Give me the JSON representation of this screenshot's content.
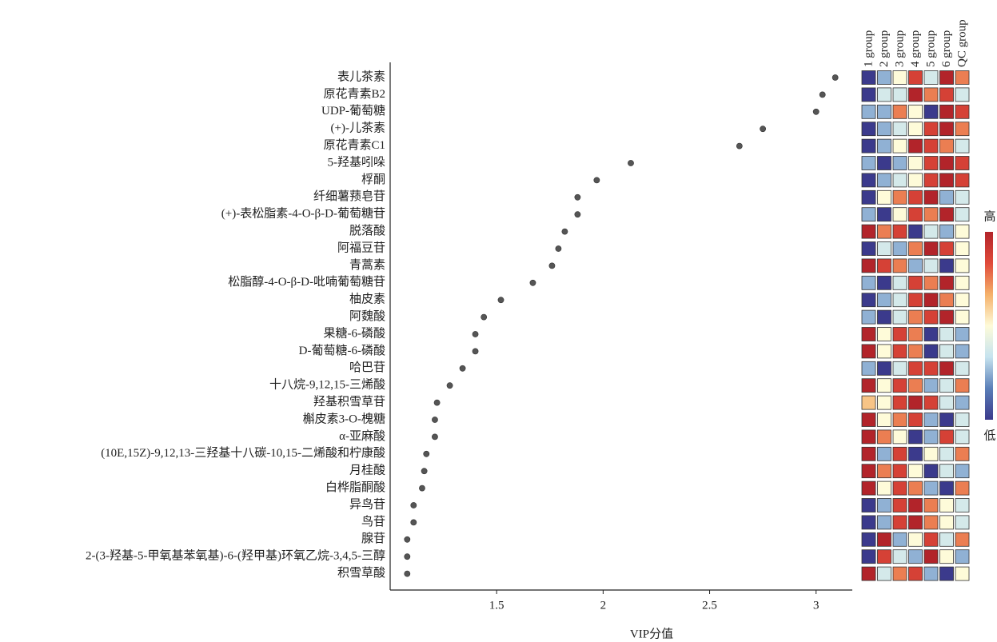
{
  "chart_data": {
    "type": "vip-heatmap",
    "x_label": "VIP分值",
    "categories": [
      "表儿茶素",
      "原花青素B2",
      "UDP-葡萄糖",
      "(+)-儿茶素",
      "原花青素C1",
      "5-羟基吲哚",
      "桴酮",
      "纤细薯蓣皂苷",
      "(+)-表松脂素-4-O-β-D-葡萄糖苷",
      "脱落酸",
      "阿福豆苷",
      "青蒿素",
      "松脂醇-4-O-β-D-吡喃葡萄糖苷",
      "柚皮素",
      "阿魏酸",
      "果糖-6-磷酸",
      "D-葡萄糖-6-磷酸",
      "哈巴苷",
      "十八烷-9,12,15-三烯酸",
      "羟基积雪草苷",
      "槲皮素3-O-槐糖",
      "α-亚麻酸",
      "(10E,15Z)-9,12,13-三羟基十八碳-10,15-二烯酸和柠康酸",
      "月桂酸",
      "白桦脂酮酸",
      "异鸟苷",
      "鸟苷",
      "腺苷",
      "2-(3-羟基-5-甲氧基苯氧基)-6-(羟甲基)环氧乙烷-3,4,5-三醇",
      "积雪草酸"
    ],
    "values": [
      3.09,
      3.03,
      3.0,
      2.75,
      2.64,
      2.13,
      1.97,
      1.88,
      1.88,
      1.82,
      1.79,
      1.76,
      1.67,
      1.52,
      1.44,
      1.4,
      1.4,
      1.34,
      1.28,
      1.22,
      1.21,
      1.21,
      1.17,
      1.16,
      1.15,
      1.11,
      1.11,
      1.08,
      1.08,
      1.08
    ],
    "color": "#555555",
    "xlim": [
      1.0,
      3.17
    ],
    "xticks": [
      1.5,
      2.0,
      2.5,
      3.0
    ],
    "heatmap": {
      "columns": [
        "1 group",
        "2 group",
        "3 group",
        "4 group",
        "5 group",
        "6 group",
        "QC group"
      ],
      "zlim": [
        -2,
        2
      ],
      "colors": [
        "#3b3a8c",
        "#5a7fb8",
        "#c6e3ef",
        "#fefbd9",
        "#f5b16a",
        "#e04a3a",
        "#b2242a"
      ],
      "high_label": "高",
      "low_label": "低",
      "values": [
        [
          -2,
          -1,
          0,
          1.5,
          -0.5,
          2,
          1
        ],
        [
          -2,
          -0.5,
          -0.5,
          2,
          1,
          1.5,
          -0.5
        ],
        [
          -1,
          -1,
          1,
          0,
          -2,
          2,
          1.5
        ],
        [
          -2,
          -1,
          -0.5,
          0,
          1.5,
          2,
          1
        ],
        [
          -2,
          -1,
          0,
          2,
          1.5,
          1,
          -0.5
        ],
        [
          -1,
          -2,
          -1,
          0,
          1.5,
          2,
          1.5
        ],
        [
          -2,
          -1,
          -0.5,
          0,
          1.5,
          2,
          1.5
        ],
        [
          -2,
          0,
          1,
          1.5,
          2,
          -1,
          -0.5
        ],
        [
          -1,
          -2,
          0,
          1.5,
          1,
          2,
          -0.5
        ],
        [
          2,
          1,
          1.5,
          -2,
          -0.5,
          -1,
          0
        ],
        [
          -2,
          -0.5,
          -1,
          1,
          2,
          1.5,
          0
        ],
        [
          2,
          1.5,
          1,
          -1,
          -0.5,
          -2,
          0
        ],
        [
          -1,
          -2,
          -0.5,
          1.5,
          1,
          2,
          0
        ],
        [
          -2,
          -1,
          -0.5,
          1.5,
          2,
          1,
          0
        ],
        [
          -1,
          -2,
          -0.5,
          1,
          1.5,
          2,
          0
        ],
        [
          2,
          0,
          1.5,
          1,
          -2,
          -0.5,
          -1
        ],
        [
          2,
          0,
          1.5,
          1,
          -2,
          -0.5,
          -1
        ],
        [
          -1,
          -2,
          -0.5,
          1.5,
          1.5,
          2,
          -0.5
        ],
        [
          2,
          0,
          1.5,
          1,
          -1,
          -0.5,
          1
        ],
        [
          0.5,
          0,
          1.5,
          2,
          1.5,
          -0.5,
          -1
        ],
        [
          2,
          0,
          1,
          1.5,
          -1,
          -2,
          -0.5
        ],
        [
          2,
          1,
          0,
          -2,
          -1,
          1.5,
          -0.5
        ],
        [
          2,
          -1,
          1.5,
          -2,
          0,
          -0.5,
          1
        ],
        [
          2,
          1,
          1.5,
          0,
          -2,
          -0.5,
          -1
        ],
        [
          2,
          0,
          1.5,
          1,
          -1,
          -2,
          1
        ],
        [
          -2,
          -1,
          1.5,
          2,
          1,
          0,
          -0.5
        ],
        [
          -2,
          -1,
          1.5,
          2,
          1,
          0,
          -0.5
        ],
        [
          -2,
          2,
          -1,
          0,
          1.5,
          -0.5,
          1
        ],
        [
          -2,
          1.5,
          -0.5,
          -1,
          2,
          0,
          -1
        ],
        [
          2,
          -0.5,
          1,
          1.5,
          -1,
          -2,
          0
        ]
      ]
    }
  }
}
